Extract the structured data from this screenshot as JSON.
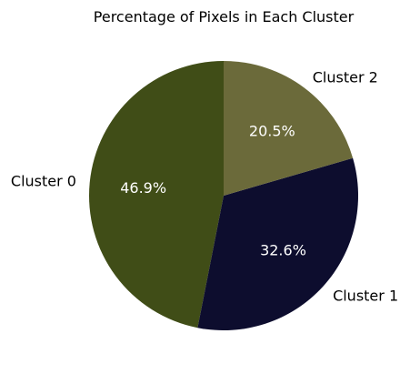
{
  "chart_data": {
    "type": "pie",
    "title": "Percentage of Pixels in Each Cluster",
    "slices": [
      {
        "label": "Cluster 0",
        "value": 46.9,
        "pct_label": "46.9%",
        "color": "#404d17"
      },
      {
        "label": "Cluster 1",
        "value": 32.6,
        "pct_label": "32.6%",
        "color": "#0d0d2e"
      },
      {
        "label": "Cluster 2",
        "value": 20.5,
        "pct_label": "20.5%",
        "color": "#6b6a3a"
      }
    ],
    "start_angle_deg": 90,
    "direction": "counterclockwise"
  }
}
